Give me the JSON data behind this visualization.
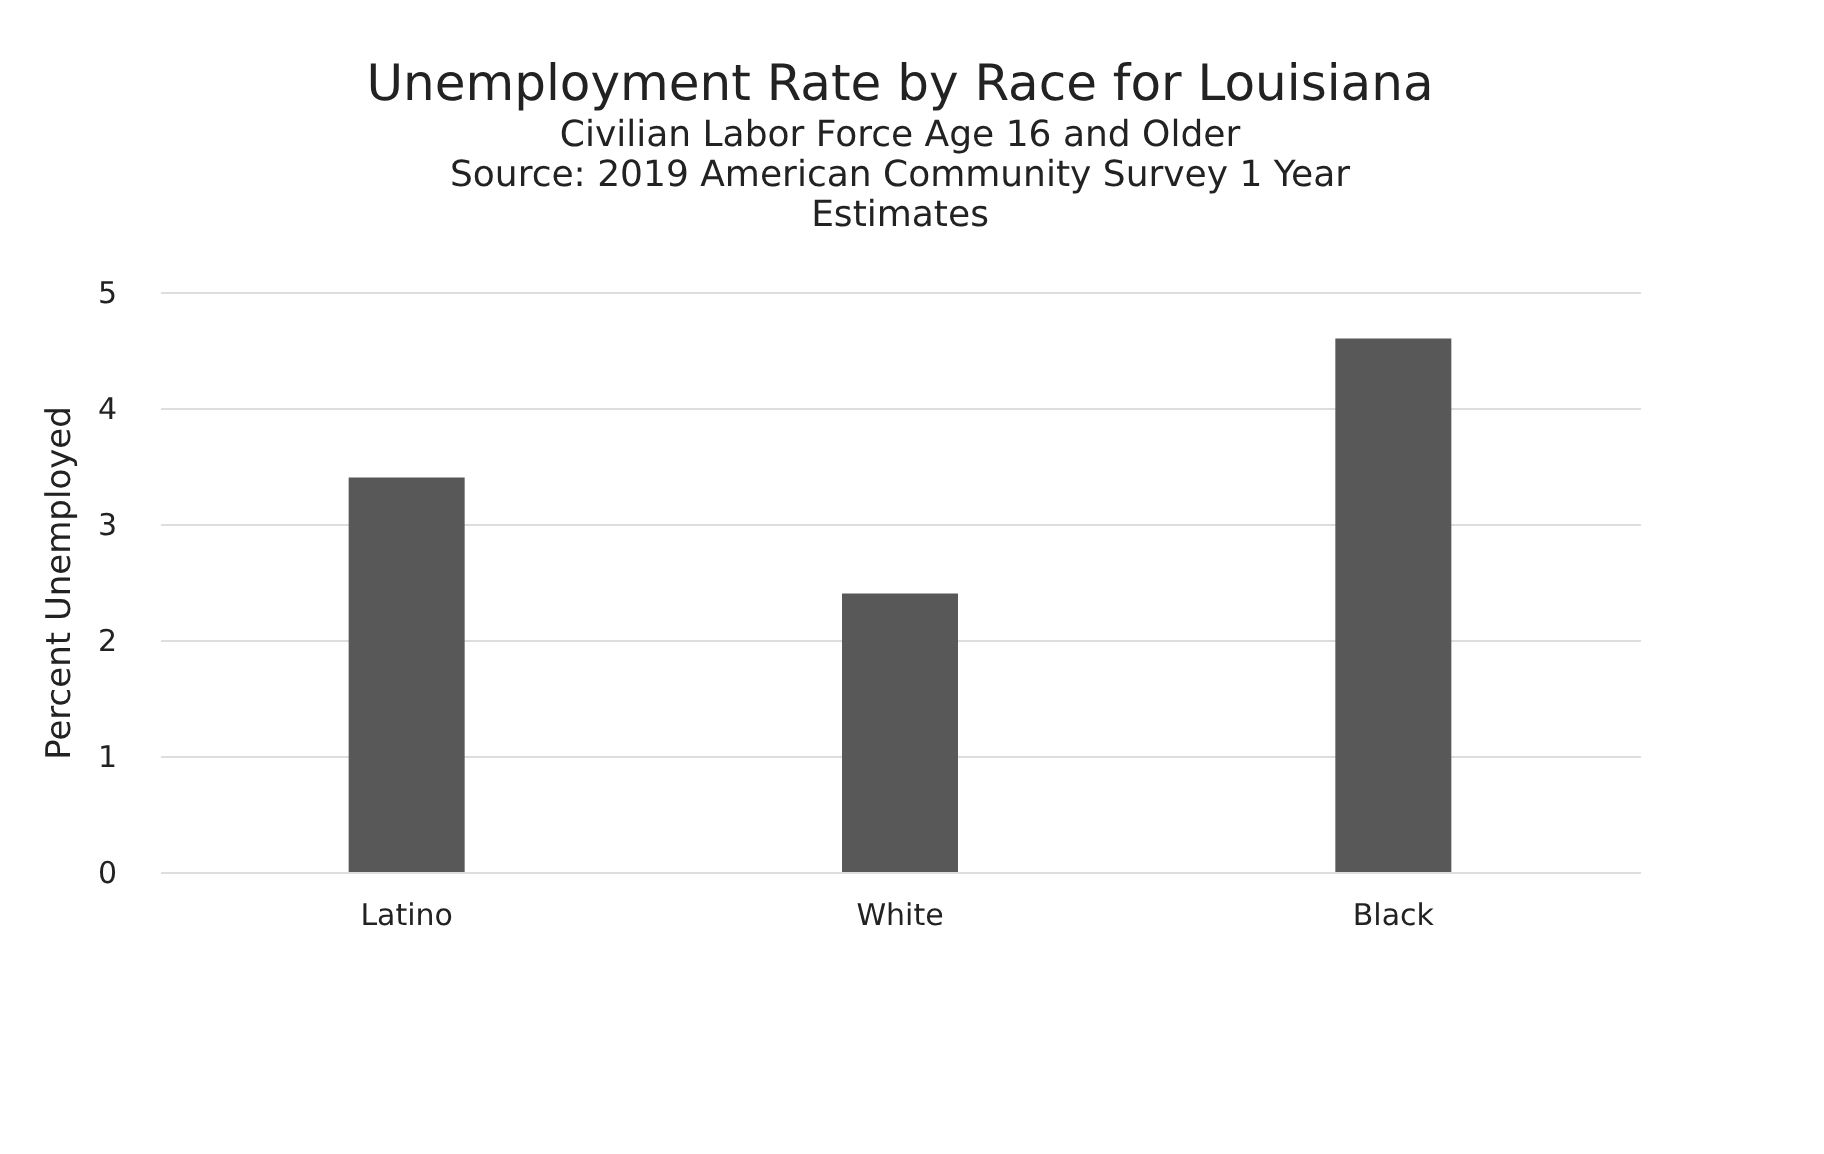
{
  "chart_data": {
    "type": "bar",
    "title": "Unemployment Rate by Race for Louisiana",
    "subtitle": "Civilian Labor Force Age 16 and Older",
    "annotations": [
      "Source: 2019 American Community Survey 1 Year",
      "Estimates"
    ],
    "ylabel": "Percent Unemployed",
    "categories": [
      "Latino",
      "White",
      "Black"
    ],
    "series": [
      {
        "color": "#585858",
        "values": [
          3.4,
          2.4,
          4.6
        ]
      }
    ],
    "ylim": [
      0,
      5
    ],
    "yticks": [
      0,
      1,
      2,
      3,
      4,
      5
    ],
    "grid": "y"
  }
}
